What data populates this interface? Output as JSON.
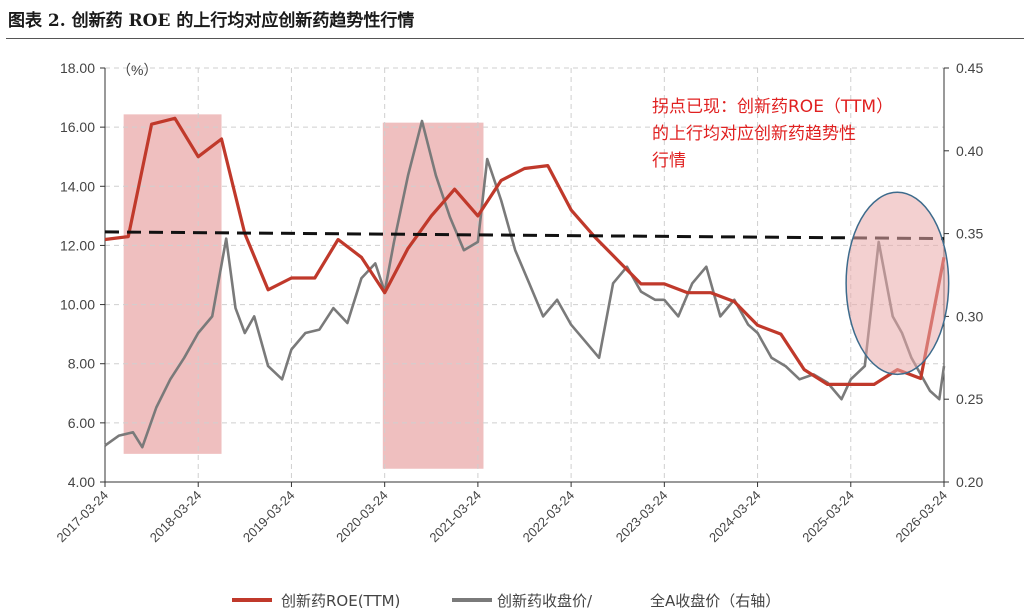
{
  "figure": {
    "title": "图表 2. 创新药 ROE 的上行均对应创新药趋势性行情"
  },
  "chart_data": {
    "type": "line",
    "unit_label": "（%）",
    "y_left": {
      "ticks": [
        "4.00",
        "6.00",
        "8.00",
        "10.00",
        "12.00",
        "14.00",
        "16.00",
        "18.00"
      ],
      "range": [
        4,
        18
      ]
    },
    "y_right": {
      "ticks": [
        "0.20",
        "0.25",
        "0.30",
        "0.35",
        "0.40",
        "0.45"
      ],
      "range": [
        0.2,
        0.45
      ]
    },
    "x_ticks": [
      "2017-03-24",
      "2018-03-24",
      "2019-03-24",
      "2020-03-24",
      "2021-03-24",
      "2022-03-24",
      "2023-03-24",
      "2024-03-24",
      "2025-03-24",
      "2026-03-24"
    ],
    "x_range": [
      2017.0,
      2026.0
    ],
    "annotation": [
      "拐点已现：创新药ROE（TTM）",
      "的上行均对应创新药趋势性",
      "行情"
    ],
    "series": [
      {
        "name": "创新药ROE(TTM)",
        "axis": "left",
        "color": "#c0392b",
        "x": [
          2017.0,
          2017.25,
          2017.5,
          2017.75,
          2018.0,
          2018.25,
          2018.5,
          2018.75,
          2019.0,
          2019.25,
          2019.5,
          2019.75,
          2020.0,
          2020.25,
          2020.5,
          2020.75,
          2021.0,
          2021.25,
          2021.5,
          2021.75,
          2022.0,
          2022.25,
          2022.5,
          2022.75,
          2023.0,
          2023.25,
          2023.5,
          2023.75,
          2024.0,
          2024.25,
          2024.5,
          2024.75,
          2025.0,
          2025.25,
          2025.5,
          2025.75,
          2026.0
        ],
        "values": [
          12.2,
          12.3,
          16.1,
          16.3,
          15.0,
          15.6,
          12.4,
          10.5,
          10.9,
          10.9,
          12.2,
          11.6,
          10.4,
          11.9,
          13.0,
          13.9,
          13.0,
          14.2,
          14.6,
          14.7,
          13.2,
          12.3,
          11.5,
          10.7,
          10.7,
          10.4,
          10.4,
          10.1,
          9.3,
          9.0,
          7.8,
          7.3,
          7.3,
          7.3,
          7.8,
          7.5,
          11.6
        ]
      },
      {
        "name": "创新药收盘价/全A收盘价（右轴）",
        "axis": "right",
        "color": "#7a7a7a",
        "x": [
          2017.0,
          2017.15,
          2017.3,
          2017.4,
          2017.55,
          2017.7,
          2017.85,
          2018.0,
          2018.15,
          2018.3,
          2018.4,
          2018.5,
          2018.6,
          2018.75,
          2018.9,
          2019.0,
          2019.15,
          2019.3,
          2019.45,
          2019.6,
          2019.75,
          2019.9,
          2020.0,
          2020.1,
          2020.25,
          2020.4,
          2020.55,
          2020.7,
          2020.85,
          2021.0,
          2021.1,
          2021.25,
          2021.4,
          2021.55,
          2021.7,
          2021.85,
          2022.0,
          2022.15,
          2022.3,
          2022.45,
          2022.6,
          2022.75,
          2022.9,
          2023.0,
          2023.15,
          2023.3,
          2023.45,
          2023.6,
          2023.75,
          2023.9,
          2024.0,
          2024.15,
          2024.3,
          2024.45,
          2024.6,
          2024.75,
          2024.9,
          2025.0,
          2025.15,
          2025.3,
          2025.45,
          2025.55,
          2025.65,
          2025.75,
          2025.85,
          2025.95,
          2026.0
        ],
        "values": [
          0.222,
          0.228,
          0.23,
          0.221,
          0.245,
          0.262,
          0.275,
          0.29,
          0.3,
          0.347,
          0.305,
          0.29,
          0.3,
          0.27,
          0.262,
          0.28,
          0.29,
          0.292,
          0.305,
          0.296,
          0.323,
          0.332,
          0.315,
          0.345,
          0.385,
          0.418,
          0.385,
          0.36,
          0.34,
          0.345,
          0.395,
          0.37,
          0.34,
          0.32,
          0.3,
          0.31,
          0.295,
          0.285,
          0.275,
          0.32,
          0.33,
          0.315,
          0.31,
          0.31,
          0.3,
          0.32,
          0.33,
          0.3,
          0.31,
          0.295,
          0.29,
          0.275,
          0.27,
          0.262,
          0.265,
          0.26,
          0.25,
          0.262,
          0.27,
          0.345,
          0.3,
          0.29,
          0.275,
          0.265,
          0.255,
          0.25,
          0.27
        ]
      },
      {
        "name": "",
        "axis": "right",
        "style": "dashed",
        "color": "#111111",
        "x": [
          2017.0,
          2026.0
        ],
        "values": [
          0.351,
          0.347
        ]
      }
    ],
    "shaded_periods": [
      {
        "x0": 2017.2,
        "x1": 2018.25,
        "y0": 0.217,
        "y1": 0.422
      },
      {
        "x0": 2019.98,
        "x1": 2021.06,
        "y0": 0.208,
        "y1": 0.417
      }
    ],
    "highlight_circle": {
      "cx": 2025.5,
      "cy": 0.32,
      "rx_years": 0.55,
      "ry": 0.055
    },
    "legend": {
      "placement": "bottom",
      "items": [
        "创新药ROE(TTM)",
        "创新药收盘价/",
        "全A收盘价（右轴）"
      ]
    },
    "grid": true
  }
}
